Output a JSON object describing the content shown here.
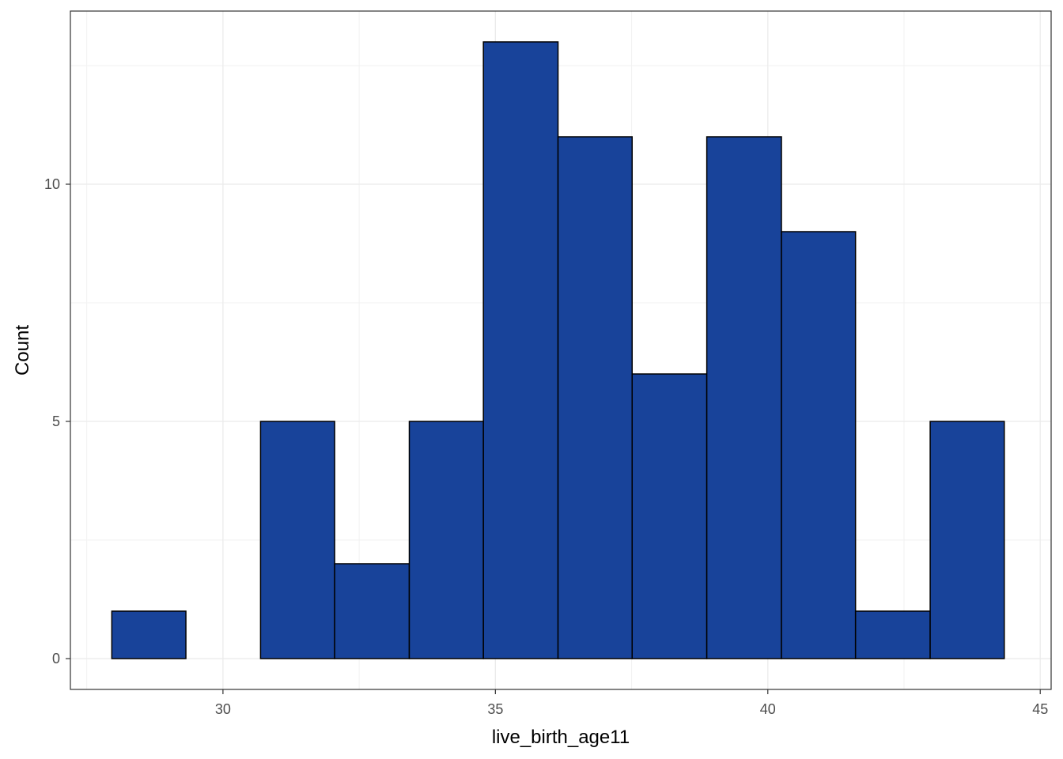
{
  "chart_data": {
    "type": "bar",
    "subtype": "histogram",
    "xlabel": "live_birth_age11",
    "ylabel": "Count",
    "x_ticks": [
      30,
      35,
      40,
      45
    ],
    "y_ticks": [
      0,
      5,
      10
    ],
    "x_range": [
      27.2,
      45.2
    ],
    "y_range": [
      -0.65,
      13.65
    ],
    "bin_width": 1.365,
    "bins": [
      {
        "start": 27.96,
        "end": 29.32,
        "count": 1
      },
      {
        "start": 29.32,
        "end": 30.69,
        "count": 0
      },
      {
        "start": 30.69,
        "end": 32.05,
        "count": 5
      },
      {
        "start": 32.05,
        "end": 33.42,
        "count": 2
      },
      {
        "start": 33.42,
        "end": 34.78,
        "count": 5
      },
      {
        "start": 34.78,
        "end": 36.15,
        "count": 13
      },
      {
        "start": 36.15,
        "end": 37.51,
        "count": 11
      },
      {
        "start": 37.51,
        "end": 38.88,
        "count": 6
      },
      {
        "start": 38.88,
        "end": 40.25,
        "count": 11
      },
      {
        "start": 40.25,
        "end": 41.61,
        "count": 9
      },
      {
        "start": 41.61,
        "end": 42.98,
        "count": 1
      },
      {
        "start": 42.98,
        "end": 44.34,
        "count": 5
      }
    ],
    "fill_color": "#18439a",
    "outline_color": "#000000",
    "grid": true,
    "legend": "none"
  }
}
